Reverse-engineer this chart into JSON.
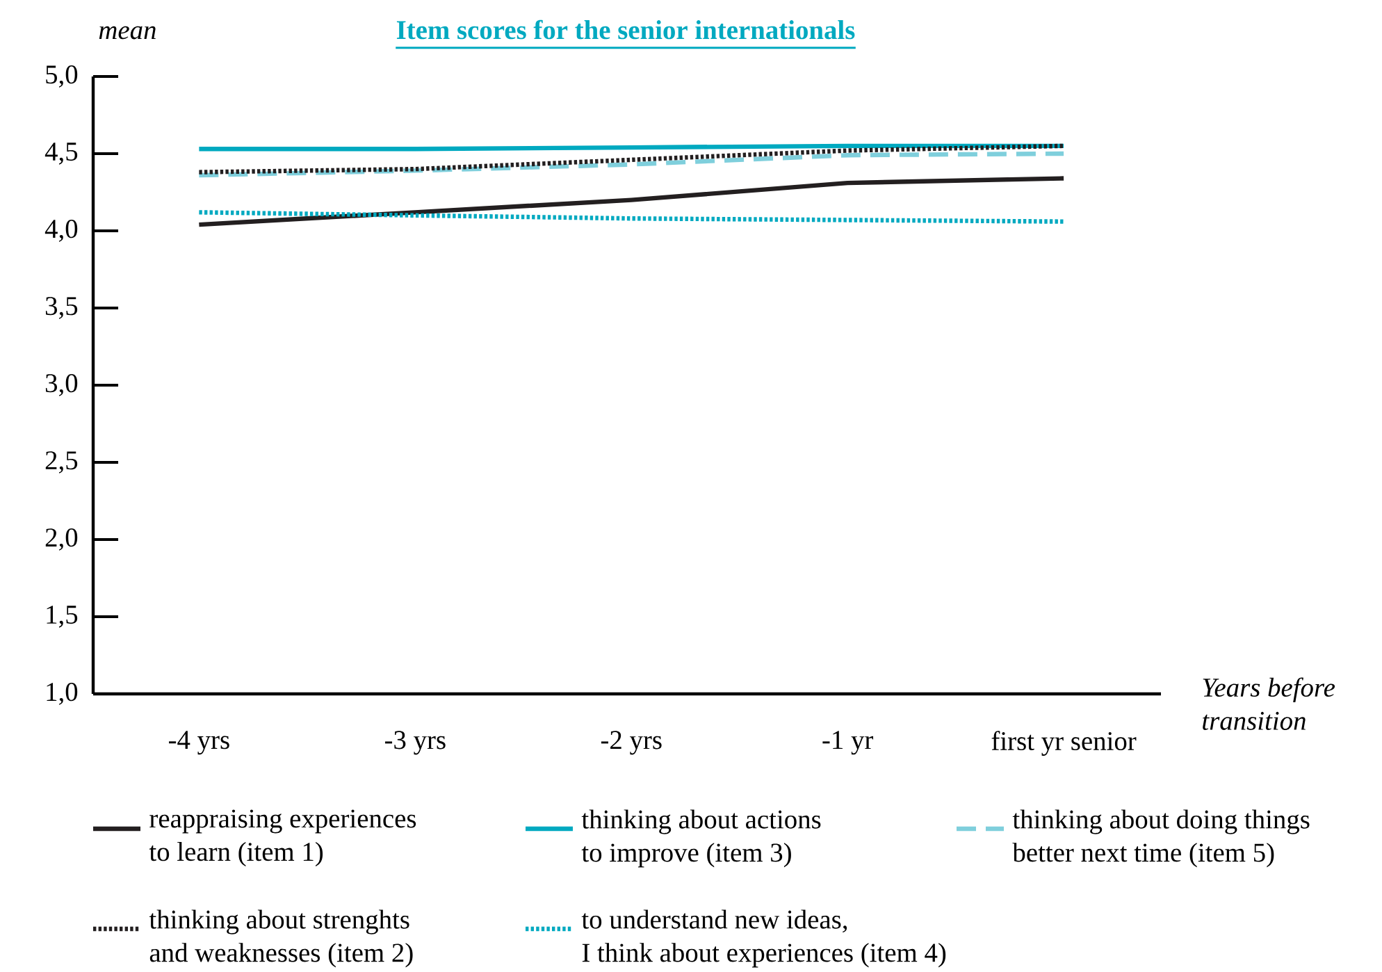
{
  "chart_data": {
    "type": "line",
    "title": "Item scores for the senior internationals",
    "ylabel": "mean",
    "xlabel": "Years before\ntransition",
    "categories": [
      "-4 yrs",
      "-3 yrs",
      "-2 yrs",
      "-1 yr",
      "first yr senior"
    ],
    "ylim": [
      1,
      5
    ],
    "yticks": [
      {
        "value": 1,
        "label": "1,0"
      },
      {
        "value": 1.5,
        "label": "1,5"
      },
      {
        "value": 2,
        "label": "2,0"
      },
      {
        "value": 2.5,
        "label": "2,5"
      },
      {
        "value": 3,
        "label": "3,0"
      },
      {
        "value": 3.5,
        "label": "3,5"
      },
      {
        "value": 4,
        "label": "4,0"
      },
      {
        "value": 4.5,
        "label": "4,5"
      },
      {
        "value": 5,
        "label": "5,0"
      }
    ],
    "grid": false,
    "legend": "bottom",
    "marker": "none",
    "series": [
      {
        "name": "reappraising experiences\nto learn (item 1)",
        "color": "#231f20",
        "line_style": "solid",
        "values": [
          4.04,
          4.12,
          4.2,
          4.31,
          4.34
        ]
      },
      {
        "name": "thinking about actions\nto improve (item 3)",
        "color": "#00a9c0",
        "line_style": "solid",
        "values": [
          4.53,
          4.53,
          4.54,
          4.55,
          4.55
        ]
      },
      {
        "name": "thinking about doing things\nbetter next time (item 5)",
        "color": "#7fcfdc",
        "line_style": "dashed",
        "values": [
          4.36,
          4.39,
          4.43,
          4.49,
          4.5
        ]
      },
      {
        "name": "thinking about strenghts\nand weaknesses (item 2)",
        "color": "#231f20",
        "line_style": "dotted",
        "values": [
          4.38,
          4.4,
          4.46,
          4.52,
          4.55
        ]
      },
      {
        "name": "to understand new ideas,\nI think about experiences (item 4)",
        "color": "#00a9c0",
        "line_style": "dotted",
        "values": [
          4.12,
          4.1,
          4.08,
          4.07,
          4.06
        ]
      }
    ]
  }
}
